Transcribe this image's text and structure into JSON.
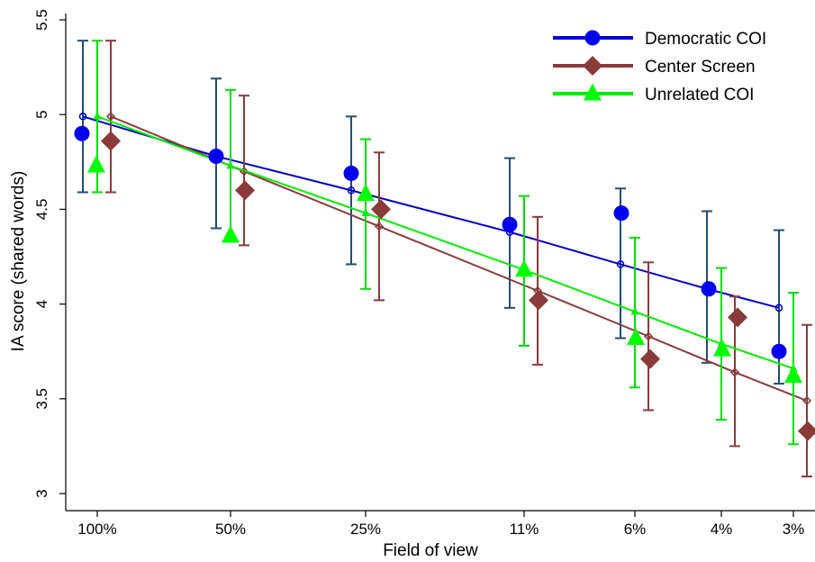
{
  "chart_data": {
    "type": "scatter",
    "title": "",
    "xlabel": "Field of view",
    "ylabel": "IA score  (shared words)",
    "categories": [
      "100%",
      "50%",
      "25%",
      "11%",
      "6%",
      "4%",
      "3%"
    ],
    "ylim": [
      3,
      5.5
    ],
    "yticks": [
      "3",
      "3.5",
      "4",
      "4.5",
      "5",
      "5.5"
    ],
    "grid": false,
    "legend_position": "top-right",
    "series": [
      {
        "name": "Democratic COI",
        "color": "#0000ee",
        "fit_line_color": "#0000cc",
        "errorbar_color": "#1f4e79",
        "marker": "circle",
        "means": [
          4.9,
          4.78,
          4.69,
          4.42,
          4.48,
          4.08,
          3.75
        ],
        "fitted": [
          4.99,
          4.78,
          4.6,
          4.38,
          4.21,
          4.08,
          3.98
        ],
        "ci_lower": [
          4.59,
          4.4,
          4.21,
          3.98,
          3.82,
          3.69,
          3.58
        ],
        "ci_upper": [
          5.39,
          5.19,
          4.99,
          4.77,
          4.61,
          4.49,
          4.39
        ]
      },
      {
        "name": "Center Screen",
        "color": "#8b3a3a",
        "fit_line_color": "#8b3a3a",
        "errorbar_color": "#8b3a3a",
        "marker": "diamond",
        "means": [
          4.86,
          4.6,
          4.5,
          4.02,
          3.71,
          3.93,
          3.33
        ],
        "fitted": [
          4.99,
          4.7,
          4.41,
          4.07,
          3.83,
          3.64,
          3.49
        ],
        "ci_lower": [
          4.59,
          4.31,
          4.02,
          3.68,
          3.44,
          3.25,
          3.09
        ],
        "ci_upper": [
          5.39,
          5.1,
          4.8,
          4.46,
          4.22,
          4.04,
          3.89
        ]
      },
      {
        "name": "Unrelated COI",
        "color": "#00ff00",
        "fit_line_color": "#00ee00",
        "errorbar_color": "#00dd00",
        "marker": "triangle",
        "means": [
          4.73,
          4.36,
          4.58,
          4.18,
          3.82,
          3.76,
          3.62
        ],
        "fitted": [
          4.99,
          4.73,
          4.48,
          4.18,
          3.96,
          3.79,
          3.66
        ],
        "ci_lower": [
          4.59,
          4.33,
          4.08,
          3.78,
          3.56,
          3.39,
          3.26
        ],
        "ci_upper": [
          5.39,
          5.13,
          4.87,
          4.57,
          4.35,
          4.19,
          4.06
        ]
      }
    ]
  }
}
